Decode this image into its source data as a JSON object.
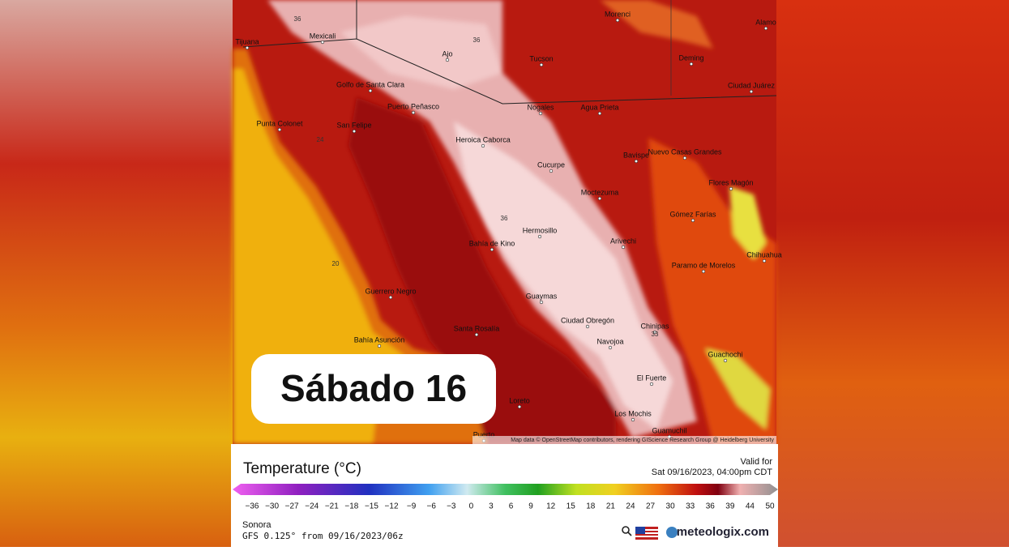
{
  "overlay_label": "Sábado 16",
  "map": {
    "cities": [
      "Tijuana",
      "Mexicali",
      "Morenci",
      "Alamo",
      "Deming",
      "Tucson",
      "Ajo",
      "Golfo de Santa Clara",
      "Puerto Peñasco",
      "Nogales",
      "Agua Prieta",
      "Ciudad Juárez",
      "Punta Colonet",
      "San Felipe",
      "Heroica Caborca",
      "Bavispe",
      "Nuevo Casas Grandes",
      "Cucurpe",
      "Flores Magón",
      "Moctezuma",
      "Gómez Farías",
      "Hermosillo",
      "Bahía de Kino",
      "Arivechi",
      "Chihuahua",
      "Paramo de Morelos",
      "Guerrero Negro",
      "Guaymas",
      "Ciudad Obregón",
      "Chinipas",
      "Santa Rosalía",
      "Bahía Asunción",
      "Navojoa",
      "Guachochi",
      "El Fuerte",
      "Loreto",
      "Los Mochis",
      "Guamuchil",
      "Puerto"
    ],
    "contour_labels": [
      "36",
      "36",
      "24",
      "20",
      "36",
      "33"
    ],
    "attribution": "Map data © OpenStreetMap contributors, rendering GIScience Research Group @ Heidelberg University"
  },
  "legend": {
    "title": "Temperature (°C)",
    "valid_label": "Valid for",
    "valid_time": "Sat 09/16/2023, 04:00pm CDT",
    "ticks": [
      "−36",
      "−30",
      "−27",
      "−24",
      "−21",
      "−18",
      "−15",
      "−12",
      "−9",
      "−6",
      "−3",
      "0",
      "3",
      "6",
      "9",
      "12",
      "15",
      "18",
      "21",
      "24",
      "27",
      "30",
      "33",
      "36",
      "39",
      "44",
      "50"
    ],
    "region": "Sonora",
    "model_run": "GFS 0.125° from 09/16/2023/06z",
    "brand": "meteologix.com"
  }
}
